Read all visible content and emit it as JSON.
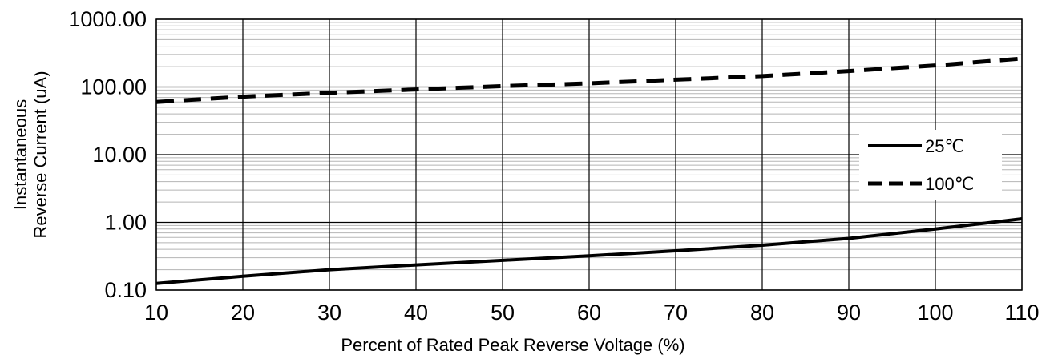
{
  "chart_data": {
    "type": "line",
    "title": "",
    "xlabel": "Percent of  Rated Peak Reverse Voltage (%)",
    "ylabel_lines": [
      "Instantaneous",
      "Reverse Current (uA)"
    ],
    "x_ticks": [
      10,
      20,
      30,
      40,
      50,
      60,
      70,
      80,
      90,
      100,
      110
    ],
    "y_ticks": [
      "0.10",
      "1.00",
      "10.00",
      "100.00",
      "1000.00"
    ],
    "xlim": [
      10,
      110
    ],
    "ylim": [
      0.1,
      1000
    ],
    "y_scale": "log",
    "grid": true,
    "legend_position": "right",
    "series": [
      {
        "name": "25℃",
        "style": "solid",
        "color": "#000000",
        "x": [
          10,
          20,
          30,
          40,
          50,
          60,
          70,
          80,
          90,
          100,
          110
        ],
        "y": [
          0.125,
          0.16,
          0.2,
          0.235,
          0.275,
          0.32,
          0.38,
          0.46,
          0.58,
          0.8,
          1.13
        ]
      },
      {
        "name": "100℃",
        "style": "dashed",
        "color": "#000000",
        "x": [
          10,
          20,
          30,
          40,
          50,
          60,
          70,
          80,
          90,
          100,
          110
        ],
        "y": [
          60,
          72,
          82,
          92,
          103,
          113,
          128,
          145,
          172,
          208,
          263
        ]
      }
    ]
  }
}
